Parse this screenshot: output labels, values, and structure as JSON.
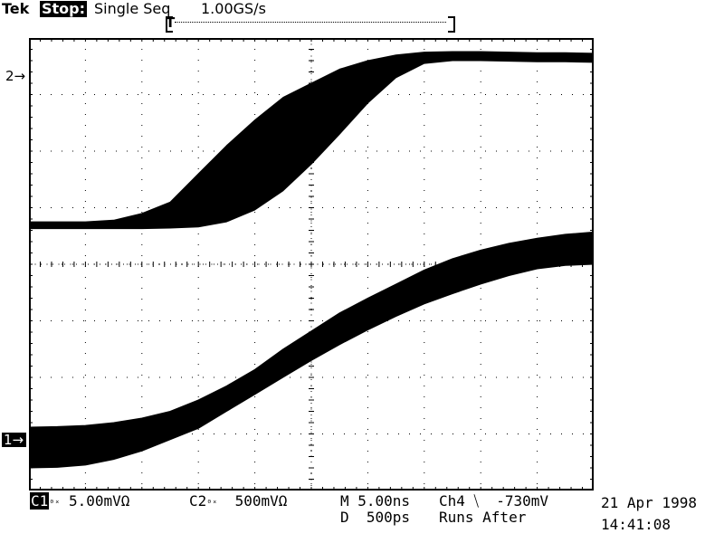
{
  "header": {
    "brand": "Tek",
    "run_state": "Stop:",
    "acquisition_mode": "Single Seq",
    "sample_rate": "1.00GS/s",
    "trigger_marker": "T"
  },
  "markers": {
    "ch2": "2→",
    "ch1": "1→"
  },
  "readouts": {
    "ch1_label": "C1",
    "ch1_coupling_symbol": "₀ₓ",
    "ch1_scale": "5.00mVΩ",
    "ch2_label": "C2",
    "ch2_coupling_symbol": "₀ₓ",
    "ch2_scale": "500mVΩ",
    "timebase": "M 5.00ns",
    "delay": "D  500ps",
    "trigger": "Ch4 ⧹  -730mV",
    "runs_after": "Runs After"
  },
  "datetime": {
    "date": "21 Apr 1998",
    "time": "14:41:08"
  },
  "colors": {
    "background": "#ffffff",
    "trace": "#000000",
    "graticule": "#000000"
  },
  "chart_data": {
    "type": "line",
    "title": "",
    "xlabel": "",
    "ylabel": "",
    "x_divisions": 10,
    "y_divisions": 8,
    "xlim": [
      0,
      10
    ],
    "ylim": [
      -4,
      4
    ],
    "x": [
      0,
      0.5,
      1,
      1.5,
      2,
      2.5,
      3,
      3.5,
      4,
      4.5,
      5,
      5.5,
      6,
      6.5,
      7,
      7.5,
      8,
      8.5,
      9,
      9.5,
      10
    ],
    "series": [
      {
        "upper": [
          0.75,
          0.75,
          0.75,
          0.78,
          0.9,
          1.1,
          1.6,
          2.1,
          2.55,
          2.95,
          3.2,
          3.45,
          3.6,
          3.7,
          3.75,
          3.76,
          3.76,
          3.75,
          3.74,
          3.74,
          3.73
        ],
        "lower": [
          0.63,
          0.63,
          0.63,
          0.63,
          0.63,
          0.64,
          0.66,
          0.75,
          0.96,
          1.3,
          1.77,
          2.3,
          2.85,
          3.3,
          3.55,
          3.6,
          3.6,
          3.59,
          3.58,
          3.58,
          3.57
        ]
      },
      {
        "upper": [
          -2.88,
          -2.87,
          -2.85,
          -2.8,
          -2.72,
          -2.6,
          -2.4,
          -2.15,
          -1.86,
          -1.5,
          -1.18,
          -0.86,
          -0.6,
          -0.35,
          -0.1,
          0.1,
          0.25,
          0.37,
          0.46,
          0.53,
          0.57
        ],
        "lower": [
          -3.6,
          -3.59,
          -3.55,
          -3.45,
          -3.3,
          -3.1,
          -2.9,
          -2.6,
          -2.3,
          -2.0,
          -1.7,
          -1.42,
          -1.16,
          -0.92,
          -0.7,
          -0.52,
          -0.35,
          -0.2,
          -0.08,
          -0.02,
          0.0
        ]
      }
    ]
  }
}
